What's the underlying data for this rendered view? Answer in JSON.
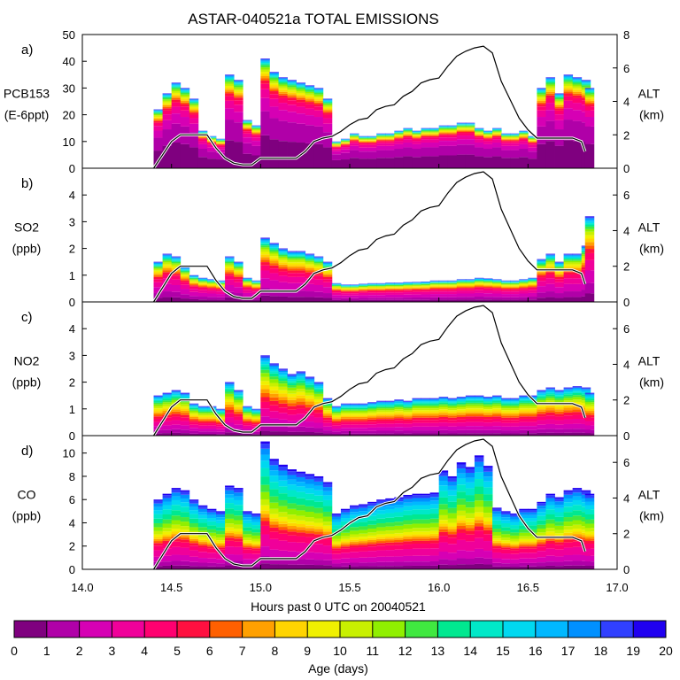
{
  "chart_data": {
    "type": "stacked-area",
    "title": "ASTAR-040521a TOTAL EMISSIONS",
    "xlabel": "Hours past 0 UTC on 20040521",
    "x_ticks": [
      "14.0",
      "14.5",
      "15.0",
      "15.5",
      "16.0",
      "16.5",
      "17.0"
    ],
    "xlim": [
      14.0,
      17.0
    ],
    "time": [
      14.4,
      14.45,
      14.5,
      14.55,
      14.6,
      14.65,
      14.7,
      14.75,
      14.8,
      14.85,
      14.9,
      14.95,
      15.0,
      15.05,
      15.1,
      15.15,
      15.2,
      15.25,
      15.3,
      15.35,
      15.4,
      15.45,
      15.5,
      15.55,
      15.6,
      15.65,
      15.7,
      15.75,
      15.8,
      15.85,
      15.9,
      15.95,
      16.0,
      16.05,
      16.1,
      16.15,
      16.2,
      16.25,
      16.3,
      16.35,
      16.4,
      16.45,
      16.5,
      16.55,
      16.6,
      16.65,
      16.7,
      16.75,
      16.8,
      16.82
    ],
    "altitude_km": [
      0.0,
      0.8,
      1.6,
      2.0,
      2.0,
      2.0,
      2.0,
      1.2,
      0.6,
      0.3,
      0.2,
      0.2,
      0.6,
      0.6,
      0.6,
      0.6,
      0.6,
      1.0,
      1.6,
      1.8,
      1.9,
      2.2,
      2.6,
      2.9,
      3.0,
      3.5,
      3.7,
      3.8,
      4.3,
      4.6,
      5.1,
      5.3,
      5.4,
      6.1,
      6.7,
      7.0,
      7.2,
      7.3,
      6.9,
      5.2,
      4.1,
      3.0,
      2.3,
      1.8,
      1.8,
      1.8,
      1.8,
      1.8,
      1.6,
      1.0
    ],
    "age_bins": [
      0,
      1,
      2,
      3,
      4,
      5,
      6,
      7,
      8,
      9,
      10,
      11,
      12,
      13,
      14,
      15,
      16,
      17,
      18,
      19,
      20
    ],
    "colorbar_label": "Age (days)",
    "colorbar_ticks": [
      "0",
      "1",
      "2",
      "3",
      "4",
      "5",
      "6",
      "7",
      "8",
      "9",
      "10",
      "11",
      "12",
      "13",
      "14",
      "15",
      "16",
      "17",
      "18",
      "19",
      "20"
    ],
    "colors": [
      "#7f007f",
      "#b000a8",
      "#d600b4",
      "#f0009a",
      "#ff0070",
      "#ff1040",
      "#ff6000",
      "#ffa000",
      "#ffd400",
      "#f0f000",
      "#c8f000",
      "#90ef00",
      "#40e840",
      "#00e890",
      "#00e8c8",
      "#00d8f0",
      "#00b8ff",
      "#0090ff",
      "#3040ff",
      "#2000f0"
    ],
    "panels": [
      {
        "id": "a",
        "label": "a)",
        "ylabel_line1": "PCB153",
        "ylabel_line2": "(E-6ppt)",
        "ylim": [
          0,
          50
        ],
        "y_ticks": [
          "0",
          "10",
          "20",
          "30",
          "40",
          "50"
        ],
        "alt_label": "ALT",
        "alt_unit": "(km)",
        "alt_ticks": [
          "0",
          "2",
          "4",
          "6",
          "8"
        ],
        "alt_lim": [
          0,
          8
        ],
        "totals": [
          22,
          28,
          32,
          30,
          26,
          14,
          12,
          11,
          35,
          33,
          18,
          16,
          41,
          36,
          34,
          33,
          32,
          31,
          30,
          26,
          10,
          11,
          13,
          12,
          12,
          13,
          13,
          14,
          15,
          14,
          15,
          15,
          16,
          16,
          17,
          17,
          15,
          14,
          15,
          13,
          13,
          14,
          12,
          30,
          34,
          28,
          35,
          34,
          33,
          30
        ],
        "weights": [
          0.3,
          0.22,
          0.12,
          0.08,
          0.05,
          0.03,
          0.02,
          0.02,
          0.02,
          0.02,
          0.02,
          0.02,
          0.02,
          0.01,
          0.01,
          0.01,
          0.01,
          0.01,
          0.005,
          0.005
        ]
      },
      {
        "id": "b",
        "label": "b)",
        "ylabel_line1": "SO2",
        "ylabel_line2": "(ppb)",
        "ylim": [
          0,
          5
        ],
        "y_ticks": [
          "0",
          "1",
          "2",
          "3",
          "4"
        ],
        "alt_label": "ALT",
        "alt_unit": "(km)",
        "alt_ticks": [
          "0",
          "2",
          "4",
          "6"
        ],
        "alt_lim": [
          0,
          7.5
        ],
        "totals": [
          1.5,
          1.8,
          1.7,
          1.3,
          1.0,
          0.9,
          0.85,
          0.8,
          1.7,
          1.5,
          0.9,
          0.8,
          2.4,
          2.2,
          2.0,
          1.9,
          1.9,
          1.8,
          1.7,
          1.5,
          0.7,
          0.65,
          0.65,
          0.68,
          0.7,
          0.7,
          0.72,
          0.72,
          0.74,
          0.75,
          0.76,
          0.8,
          0.8,
          0.8,
          0.85,
          0.85,
          0.9,
          0.88,
          0.85,
          0.8,
          0.8,
          0.85,
          0.9,
          1.6,
          1.8,
          1.5,
          1.8,
          1.8,
          2.1,
          3.2
        ],
        "weights": [
          0.1,
          0.12,
          0.15,
          0.12,
          0.08,
          0.05,
          0.04,
          0.04,
          0.04,
          0.04,
          0.04,
          0.03,
          0.03,
          0.02,
          0.02,
          0.02,
          0.02,
          0.02,
          0.01,
          0.01
        ]
      },
      {
        "id": "c",
        "label": "c)",
        "ylabel_line1": "NO2",
        "ylabel_line2": "(ppb)",
        "ylim": [
          0,
          5
        ],
        "y_ticks": [
          "0",
          "1",
          "2",
          "3",
          "4"
        ],
        "alt_label": "ALT",
        "alt_unit": "(km)",
        "alt_ticks": [
          "0",
          "2",
          "4",
          "6"
        ],
        "alt_lim": [
          0,
          7.5
        ],
        "totals": [
          1.5,
          1.6,
          1.7,
          1.6,
          1.2,
          1.1,
          1.1,
          1.0,
          2.0,
          1.7,
          1.1,
          1.0,
          3.0,
          2.7,
          2.5,
          2.3,
          2.4,
          2.2,
          2.0,
          1.4,
          1.1,
          1.2,
          1.2,
          1.2,
          1.25,
          1.3,
          1.3,
          1.35,
          1.3,
          1.4,
          1.4,
          1.4,
          1.45,
          1.4,
          1.45,
          1.5,
          1.5,
          1.45,
          1.5,
          1.4,
          1.4,
          1.5,
          1.5,
          1.7,
          1.8,
          1.7,
          1.8,
          1.85,
          1.8,
          1.6
        ],
        "weights": [
          0.06,
          0.08,
          0.1,
          0.1,
          0.08,
          0.06,
          0.05,
          0.05,
          0.05,
          0.05,
          0.05,
          0.05,
          0.04,
          0.04,
          0.03,
          0.03,
          0.03,
          0.02,
          0.02,
          0.01
        ]
      },
      {
        "id": "d",
        "label": "d)",
        "ylabel_line1": "CO",
        "ylabel_line2": "(ppb)",
        "ylim": [
          0,
          11.5
        ],
        "y_ticks": [
          "0",
          "2",
          "4",
          "6",
          "8",
          "10"
        ],
        "alt_label": "ALT",
        "alt_unit": "(km)",
        "alt_ticks": [
          "0",
          "2",
          "4",
          "6"
        ],
        "alt_lim": [
          0,
          7.5
        ],
        "totals": [
          6.0,
          6.5,
          7.0,
          6.8,
          6.0,
          5.5,
          5.2,
          5.0,
          7.2,
          7.0,
          5.0,
          4.8,
          11.0,
          9.5,
          9.0,
          8.6,
          8.4,
          8.2,
          8.0,
          7.5,
          4.8,
          5.2,
          5.5,
          5.6,
          5.8,
          6.0,
          6.1,
          6.2,
          6.4,
          6.5,
          6.5,
          6.6,
          8.5,
          8.0,
          9.2,
          8.8,
          9.8,
          8.9,
          5.3,
          5.0,
          4.8,
          5.2,
          5.2,
          5.8,
          6.5,
          6.2,
          6.8,
          7.0,
          6.8,
          6.5
        ],
        "weights": [
          0.05,
          0.06,
          0.08,
          0.1,
          0.07,
          0.04,
          0.03,
          0.03,
          0.03,
          0.04,
          0.05,
          0.06,
          0.06,
          0.07,
          0.07,
          0.06,
          0.05,
          0.05,
          0.04,
          0.02
        ]
      }
    ]
  }
}
